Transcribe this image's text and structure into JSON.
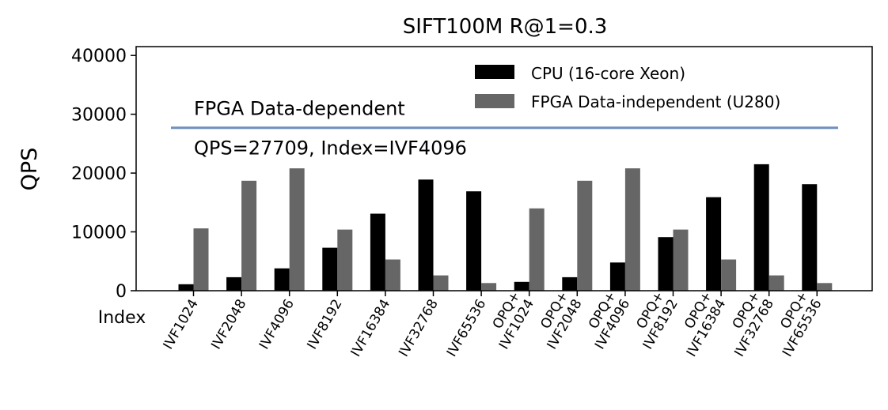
{
  "chart_data": {
    "type": "bar",
    "title": "SIFT100M R@1=0.3",
    "ylabel": "QPS",
    "xlabel": "Index",
    "ylim": [
      0,
      41500
    ],
    "yticks": [
      0,
      10000,
      20000,
      30000,
      40000
    ],
    "grid": false,
    "legend_position": "top-right",
    "categories": [
      [
        "IVF1024"
      ],
      [
        "IVF2048"
      ],
      [
        "IVF4096"
      ],
      [
        "IVF8192"
      ],
      [
        "IVF16384"
      ],
      [
        "IVF32768"
      ],
      [
        "IVF65536"
      ],
      [
        "OPQ+",
        "IVF1024"
      ],
      [
        "OPQ+",
        "IVF2048"
      ],
      [
        "OPQ+",
        "IVF4096"
      ],
      [
        "OPQ+",
        "IVF8192"
      ],
      [
        "OPQ+",
        "IVF16384"
      ],
      [
        "OPQ+",
        "IVF32768"
      ],
      [
        "OPQ+",
        "IVF65536"
      ]
    ],
    "series": [
      {
        "name": "CPU (16-core Xeon)",
        "color": "#000000",
        "values": [
          1100,
          2300,
          3800,
          7300,
          13100,
          18900,
          16900,
          1500,
          2300,
          4800,
          9100,
          15900,
          21500,
          18100
        ]
      },
      {
        "name": "FPGA Data-independent (U280)",
        "color": "#666666",
        "values": [
          10600,
          18700,
          20800,
          10400,
          5300,
          2600,
          1300,
          14000,
          18700,
          20800,
          10400,
          5300,
          2600,
          1300
        ]
      }
    ],
    "reference_line": {
      "value": 27709,
      "color": "#6e8fbe",
      "label_top": "FPGA Data-dependent",
      "label_bottom": "QPS=27709, Index=IVF4096"
    }
  }
}
